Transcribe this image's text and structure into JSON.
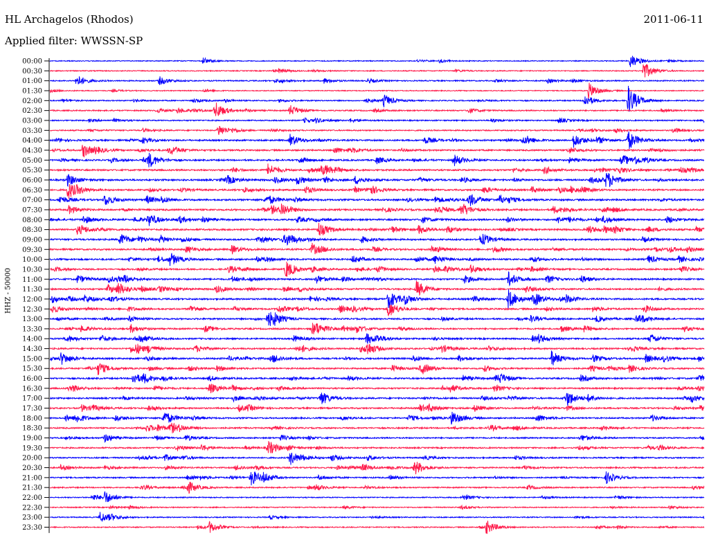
{
  "header": {
    "station": "HL Archagelos (Rhodos)",
    "date": "2011-06-11",
    "filter": "Applied filter: WWSSN-SP"
  },
  "chart_data": {
    "type": "line",
    "title": "HL Archagelos (Rhodos)",
    "subtitle": "Applied filter: WWSSN-SP",
    "ylabel": "HHZ - 50000",
    "xlabel": "",
    "x_unit": "minutes within each 30-minute row",
    "x_range": [
      0,
      30
    ],
    "grid": false,
    "legend": "none",
    "colors": [
      "#0000ff",
      "#ff1a4a"
    ],
    "row_labels": [
      "00:00",
      "00:30",
      "01:00",
      "01:30",
      "02:00",
      "02:30",
      "03:00",
      "03:30",
      "04:00",
      "04:30",
      "05:00",
      "05:30",
      "06:00",
      "06:30",
      "07:00",
      "07:30",
      "08:00",
      "08:30",
      "09:00",
      "09:30",
      "10:00",
      "10:30",
      "11:00",
      "11:30",
      "12:00",
      "12:30",
      "13:00",
      "13:30",
      "14:00",
      "14:30",
      "15:00",
      "15:30",
      "16:00",
      "16:30",
      "17:00",
      "17:30",
      "18:00",
      "18:30",
      "19:00",
      "19:30",
      "20:00",
      "20:30",
      "21:00",
      "21:30",
      "22:00",
      "22:30",
      "23:00",
      "23:30"
    ],
    "row_activity": [
      0.15,
      0.2,
      0.3,
      0.15,
      0.3,
      0.35,
      0.35,
      0.35,
      0.55,
      0.55,
      0.55,
      0.6,
      0.65,
      0.6,
      0.65,
      0.65,
      0.65,
      0.65,
      0.6,
      0.6,
      0.6,
      0.6,
      0.6,
      0.6,
      0.6,
      0.6,
      0.55,
      0.55,
      0.55,
      0.55,
      0.6,
      0.55,
      0.55,
      0.55,
      0.55,
      0.55,
      0.5,
      0.5,
      0.45,
      0.45,
      0.45,
      0.45,
      0.4,
      0.35,
      0.25,
      0.25,
      0.25,
      0.25
    ],
    "events": [
      {
        "row": 0,
        "minute": 7.0,
        "amp": 0.5
      },
      {
        "row": 0,
        "minute": 26.6,
        "amp": 1.2
      },
      {
        "row": 1,
        "minute": 27.2,
        "amp": 1.5
      },
      {
        "row": 2,
        "minute": 1.2,
        "amp": 1.0
      },
      {
        "row": 2,
        "minute": 5.0,
        "amp": 0.7
      },
      {
        "row": 3,
        "minute": 24.7,
        "amp": 1.3
      },
      {
        "row": 4,
        "minute": 15.3,
        "amp": 1.0
      },
      {
        "row": 4,
        "minute": 24.5,
        "amp": 1.0
      },
      {
        "row": 4,
        "minute": 26.5,
        "amp": 2.5
      },
      {
        "row": 5,
        "minute": 7.6,
        "amp": 1.0
      },
      {
        "row": 5,
        "minute": 11.0,
        "amp": 0.9
      },
      {
        "row": 7,
        "minute": 7.7,
        "amp": 1.0
      },
      {
        "row": 8,
        "minute": 11.0,
        "amp": 1.0
      },
      {
        "row": 8,
        "minute": 26.5,
        "amp": 1.6
      },
      {
        "row": 8,
        "minute": 24.0,
        "amp": 1.2
      },
      {
        "row": 9,
        "minute": 1.5,
        "amp": 1.2
      },
      {
        "row": 10,
        "minute": 4.5,
        "amp": 1.2
      },
      {
        "row": 10,
        "minute": 18.5,
        "amp": 1.0
      },
      {
        "row": 11,
        "minute": 10.0,
        "amp": 1.0
      },
      {
        "row": 12,
        "minute": 0.8,
        "amp": 1.0
      },
      {
        "row": 12,
        "minute": 25.5,
        "amp": 1.2
      },
      {
        "row": 13,
        "minute": 0.8,
        "amp": 1.6
      },
      {
        "row": 14,
        "minute": 2.5,
        "amp": 1.0
      },
      {
        "row": 15,
        "minute": 10.6,
        "amp": 1.0
      },
      {
        "row": 16,
        "minute": 4.5,
        "amp": 1.0
      },
      {
        "row": 17,
        "minute": 12.3,
        "amp": 1.3
      },
      {
        "row": 18,
        "minute": 3.2,
        "amp": 1.0
      },
      {
        "row": 19,
        "minute": 12.0,
        "amp": 1.0
      },
      {
        "row": 20,
        "minute": 5.5,
        "amp": 1.0
      },
      {
        "row": 21,
        "minute": 10.8,
        "amp": 1.5
      },
      {
        "row": 22,
        "minute": 21.0,
        "amp": 1.2
      },
      {
        "row": 23,
        "minute": 16.8,
        "amp": 1.4
      },
      {
        "row": 24,
        "minute": 15.5,
        "amp": 1.6
      },
      {
        "row": 24,
        "minute": 21.0,
        "amp": 1.6
      },
      {
        "row": 25,
        "minute": 15.5,
        "amp": 1.4
      },
      {
        "row": 26,
        "minute": 10.0,
        "amp": 1.0
      },
      {
        "row": 27,
        "minute": 12.0,
        "amp": 1.0
      },
      {
        "row": 28,
        "minute": 14.5,
        "amp": 1.0
      },
      {
        "row": 29,
        "minute": 14.5,
        "amp": 1.0
      },
      {
        "row": 30,
        "minute": 0.5,
        "amp": 1.0
      },
      {
        "row": 30,
        "minute": 23.0,
        "amp": 1.2
      },
      {
        "row": 31,
        "minute": 2.2,
        "amp": 1.0
      },
      {
        "row": 32,
        "minute": 3.8,
        "amp": 1.0
      },
      {
        "row": 33,
        "minute": 7.3,
        "amp": 0.9
      },
      {
        "row": 34,
        "minute": 12.4,
        "amp": 1.2
      },
      {
        "row": 34,
        "minute": 23.7,
        "amp": 1.2
      },
      {
        "row": 36,
        "minute": 5.2,
        "amp": 1.3
      },
      {
        "row": 36,
        "minute": 18.4,
        "amp": 1.3
      },
      {
        "row": 37,
        "minute": 5.5,
        "amp": 0.9
      },
      {
        "row": 39,
        "minute": 10.0,
        "amp": 1.0
      },
      {
        "row": 40,
        "minute": 11.0,
        "amp": 1.2
      },
      {
        "row": 41,
        "minute": 16.7,
        "amp": 1.3
      },
      {
        "row": 42,
        "minute": 9.2,
        "amp": 1.4
      },
      {
        "row": 42,
        "minute": 25.5,
        "amp": 1.0
      },
      {
        "row": 43,
        "minute": 6.3,
        "amp": 0.9
      },
      {
        "row": 44,
        "minute": 2.5,
        "amp": 1.0
      },
      {
        "row": 46,
        "minute": 2.3,
        "amp": 0.9
      },
      {
        "row": 47,
        "minute": 7.3,
        "amp": 0.9
      },
      {
        "row": 47,
        "minute": 20.0,
        "amp": 1.1
      }
    ]
  }
}
